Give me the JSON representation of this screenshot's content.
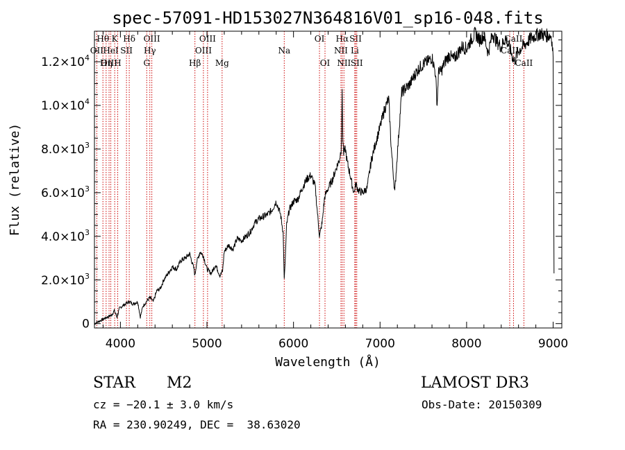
{
  "chart_data": {
    "type": "line",
    "title": "spec-57091-HD153027N364816V01_sp16-048.fits",
    "xlabel": "Wavelength (Å)",
    "ylabel": "Flux (relative)",
    "xlim": [
      3700,
      9100
    ],
    "ylim": [
      -200,
      13400
    ],
    "x_ticks": [
      {
        "value": 4000,
        "label": "4000"
      },
      {
        "value": 5000,
        "label": "5000"
      },
      {
        "value": 6000,
        "label": "6000"
      },
      {
        "value": 7000,
        "label": "7000"
      },
      {
        "value": 8000,
        "label": "8000"
      },
      {
        "value": 9000,
        "label": "9000"
      }
    ],
    "y_ticks": [
      {
        "value": 0,
        "mant": "0",
        "exp": ""
      },
      {
        "value": 2000,
        "mant": "2.0×10",
        "exp": "3"
      },
      {
        "value": 4000,
        "mant": "4.0×10",
        "exp": "3"
      },
      {
        "value": 6000,
        "mant": "6.0×10",
        "exp": "3"
      },
      {
        "value": 8000,
        "mant": "8.0×10",
        "exp": "3"
      },
      {
        "value": 10000,
        "mant": "1.0×10",
        "exp": "4"
      },
      {
        "value": 12000,
        "mant": "1.2×10",
        "exp": "4"
      }
    ],
    "series": [
      {
        "name": "flux",
        "x": [
          3700,
          3750,
          3800,
          3850,
          3900,
          3930,
          3960,
          3990,
          4020,
          4060,
          4100,
          4150,
          4200,
          4230,
          4260,
          4300,
          4340,
          4380,
          4420,
          4460,
          4500,
          4550,
          4600,
          4650,
          4700,
          4750,
          4800,
          4850,
          4861,
          4880,
          4920,
          4960,
          5000,
          5050,
          5100,
          5150,
          5180,
          5200,
          5250,
          5300,
          5350,
          5400,
          5450,
          5500,
          5550,
          5600,
          5650,
          5700,
          5750,
          5800,
          5850,
          5880,
          5893,
          5900,
          5920,
          5950,
          6000,
          6050,
          6100,
          6150,
          6200,
          6250,
          6300,
          6330,
          6360,
          6400,
          6450,
          6500,
          6530,
          6550,
          6562,
          6570,
          6580,
          6600,
          6620,
          6650,
          6680,
          6700,
          6720,
          6750,
          6800,
          6850,
          6900,
          6950,
          7000,
          7050,
          7100,
          7130,
          7150,
          7170,
          7200,
          7250,
          7300,
          7350,
          7400,
          7450,
          7500,
          7550,
          7600,
          7640,
          7660,
          7670,
          7680,
          7700,
          7750,
          7800,
          7850,
          7900,
          7950,
          8000,
          8050,
          8100,
          8150,
          8200,
          8250,
          8300,
          8350,
          8400,
          8450,
          8500,
          8550,
          8600,
          8650,
          8700,
          8750,
          8800,
          8850,
          8900,
          8950,
          8980,
          9000,
          9010
        ],
        "y": [
          0,
          100,
          200,
          300,
          400,
          600,
          300,
          700,
          800,
          900,
          1000,
          900,
          1000,
          300,
          800,
          1000,
          1200,
          1000,
          1500,
          1600,
          2000,
          2300,
          2600,
          2500,
          2900,
          3000,
          3200,
          2500,
          2200,
          2800,
          3300,
          3100,
          2500,
          2300,
          2700,
          2200,
          2400,
          3300,
          3600,
          3400,
          3900,
          3800,
          4000,
          4200,
          4600,
          4800,
          4900,
          5000,
          5200,
          5600,
          5000,
          4200,
          2000,
          2500,
          4500,
          5200,
          5600,
          5700,
          6200,
          6600,
          6800,
          6300,
          4000,
          4600,
          5800,
          6200,
          6600,
          7200,
          7500,
          8000,
          10500,
          8500,
          7800,
          8000,
          7400,
          6900,
          6300,
          6000,
          6400,
          6100,
          6000,
          6200,
          7500,
          8300,
          9000,
          9800,
          10300,
          8000,
          7000,
          6000,
          7800,
          10600,
          10800,
          11000,
          11400,
          11700,
          11900,
          12000,
          12200,
          11500,
          10000,
          11100,
          11700,
          11500,
          12000,
          12300,
          12100,
          12400,
          12700,
          12600,
          13000,
          13300,
          13000,
          13200,
          12400,
          13300,
          12900,
          12700,
          13100,
          12600,
          12000,
          12500,
          12700,
          12900,
          13100,
          13200,
          13300,
          13200,
          13200,
          13200,
          12300,
          2300
        ]
      }
    ],
    "line_markers": [
      {
        "name": "Hθ",
        "wl": 3798,
        "row": 0
      },
      {
        "name": "OII",
        "wl": 3727,
        "row": 1
      },
      {
        "name": "OIII",
        "wl": 3869,
        "row": 2
      },
      {
        "name": "K",
        "wl": 3934,
        "row": 0
      },
      {
        "name": "HeI",
        "wl": 3889,
        "row": 1
      },
      {
        "name": "Hη",
        "wl": 3835,
        "row": 2
      },
      {
        "name": "SII",
        "wl": 4070,
        "row": 1
      },
      {
        "name": "H",
        "wl": 3969,
        "row": 2
      },
      {
        "name": "Hδ",
        "wl": 4102,
        "row": 0
      },
      {
        "name": "OIII",
        "wl": 4363,
        "row": 0
      },
      {
        "name": "Hγ",
        "wl": 4340,
        "row": 1
      },
      {
        "name": "G",
        "wl": 4304,
        "row": 2
      },
      {
        "name": "OIII",
        "wl": 5007,
        "row": 0
      },
      {
        "name": "OIII",
        "wl": 4959,
        "row": 1
      },
      {
        "name": "Hβ",
        "wl": 4861,
        "row": 2
      },
      {
        "name": "Mg",
        "wl": 5175,
        "row": 2
      },
      {
        "name": "Na",
        "wl": 5893,
        "row": 1
      },
      {
        "name": "OI",
        "wl": 6300,
        "row": 0
      },
      {
        "name": "OI",
        "wl": 6364,
        "row": 2
      },
      {
        "name": "Hα",
        "wl": 6563,
        "row": 0
      },
      {
        "name": "NII",
        "wl": 6548,
        "row": 1
      },
      {
        "name": "NII",
        "wl": 6583,
        "row": 2
      },
      {
        "name": "SII",
        "wl": 6717,
        "row": 0
      },
      {
        "name": "Li",
        "wl": 6708,
        "row": 1
      },
      {
        "name": "SII",
        "wl": 6731,
        "row": 2
      },
      {
        "name": "CaII",
        "wl": 8542,
        "row": 0
      },
      {
        "name": "CaII",
        "wl": 8498,
        "row": 1
      },
      {
        "name": "CaII",
        "wl": 8662,
        "row": 2
      }
    ]
  },
  "info": {
    "class": "STAR",
    "subclass": "M2",
    "cz": "cz = −20.1 ± 3.0 km/s",
    "coords": "RA = 230.90249, DEC =  38.63020",
    "survey": "LAMOST DR3",
    "obs_date": "Obs-Date: 20150309"
  },
  "colors": {
    "axis": "#000000",
    "spectrum": "#000000",
    "line_marker": "#cc0000"
  }
}
